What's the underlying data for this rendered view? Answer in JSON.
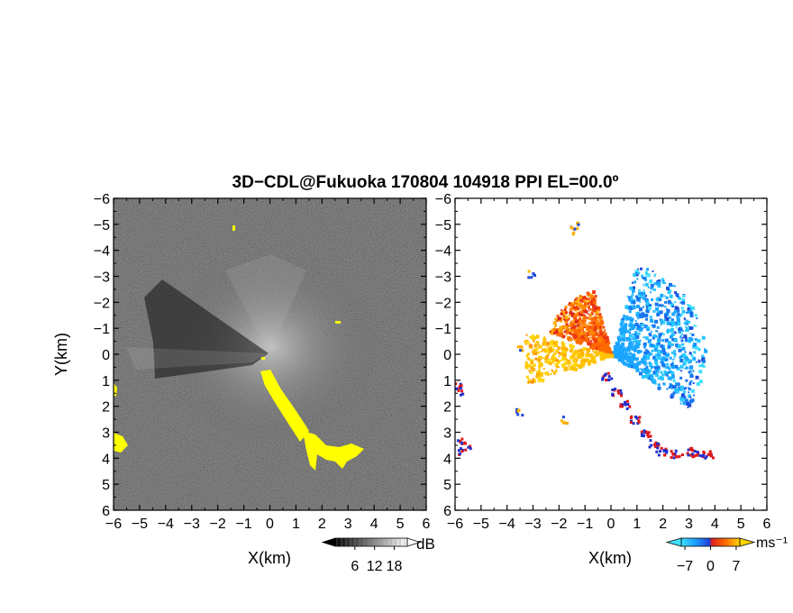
{
  "title": "3D−CDL@Fukuoka 170804 104918 PPI EL=00.0º",
  "chart_data": [
    {
      "type": "heatmap",
      "name": "reflectivity-panel",
      "xlabel": "X(km)",
      "ylabel": "Y(km)",
      "xlim": [
        -6,
        6
      ],
      "ylim": [
        -6,
        6
      ],
      "x_ticks": [
        "−6",
        "−5",
        "−4",
        "−3",
        "−2",
        "−1",
        "0",
        "1",
        "2",
        "3",
        "4",
        "5",
        "6"
      ],
      "y_ticks": [
        "−6",
        "−5",
        "−4",
        "−3",
        "−2",
        "−1",
        "0",
        "1",
        "2",
        "3",
        "4",
        "5",
        "6"
      ],
      "colormap": "grayscale",
      "colorbar": {
        "unit": "dB",
        "tick_labels": [
          "6",
          "12",
          "18"
        ],
        "ticks": [
          6,
          12,
          18
        ]
      },
      "highlight_color": "#ffff00"
    },
    {
      "type": "heatmap",
      "name": "doppler-velocity-panel",
      "xlabel": "X(km)",
      "ylabel": "",
      "xlim": [
        -6,
        6
      ],
      "ylim": [
        -6,
        6
      ],
      "x_ticks": [
        "−6",
        "−5",
        "−4",
        "−3",
        "−2",
        "−1",
        "0",
        "1",
        "2",
        "3",
        "4",
        "5",
        "6"
      ],
      "y_ticks": [
        "−6",
        "−5",
        "−4",
        "−3",
        "−2",
        "−1",
        "0",
        "1",
        "2",
        "3",
        "4",
        "5",
        "6"
      ],
      "colormap": "cyan-blue-red-yellow",
      "colorbar": {
        "unit": "ms⁻¹",
        "tick_labels": [
          "−7",
          "0",
          "7"
        ],
        "ticks": [
          -7,
          0,
          7
        ]
      }
    }
  ]
}
